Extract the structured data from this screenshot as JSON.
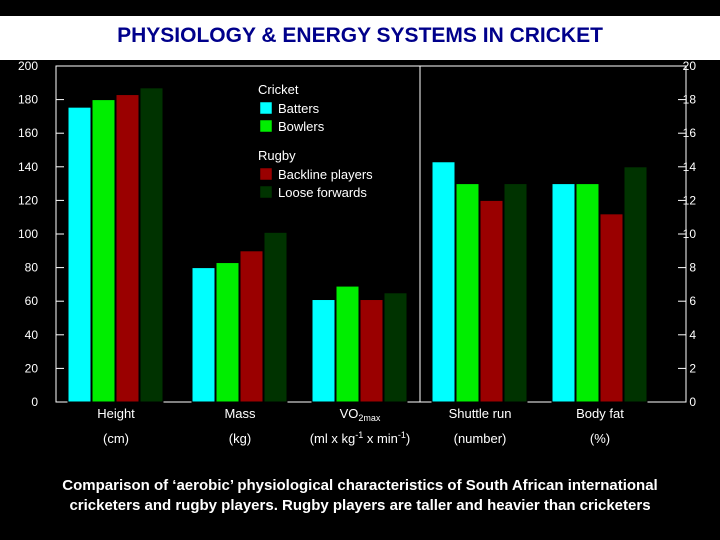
{
  "title": "PHYSIOLOGY & ENERGY SYSTEMS IN CRICKET",
  "caption": "Comparison of ‘aerobic’ physiological characteristics of South African international cricketers and rugby players. Rugby players are taller and heavier than cricketers",
  "colors": {
    "background": "#000000",
    "title_band": "#ffffff",
    "title_text": "#00008b",
    "batters": "#00ffff",
    "bowlers": "#00ee00",
    "backline": "#9a0000",
    "loose_forwards": "#003300"
  },
  "chart_data": {
    "type": "bar",
    "categories": [
      {
        "name": "Height",
        "unit": "(cm)"
      },
      {
        "name": "Mass",
        "unit": "(kg)"
      },
      {
        "name": "VO",
        "name_sub": "2max",
        "unit": "(ml x kg",
        "unit_sup1": "-1",
        "unit_mid": " x min",
        "unit_sup2": "-1",
        "unit_end": ")"
      },
      {
        "name": "Shuttle run",
        "unit": "(number)"
      },
      {
        "name": "Body fat",
        "unit": "(%)"
      }
    ],
    "series": [
      {
        "name": "Batters",
        "group": "Cricket",
        "color": "#00ffff",
        "values": [
          175.5,
          80,
          6.1,
          14.3,
          13
        ]
      },
      {
        "name": "Bowlers",
        "group": "Cricket",
        "color": "#00ee00",
        "values": [
          180,
          83,
          6.9,
          13,
          13
        ]
      },
      {
        "name": "Backline players",
        "group": "Rugby",
        "color": "#9a0000",
        "values": [
          183,
          90,
          6.1,
          12,
          11.2
        ]
      },
      {
        "name": "Loose forwards",
        "group": "Rugby",
        "color": "#003300",
        "values": [
          187,
          101,
          6.5,
          13,
          14
        ]
      }
    ],
    "axis_groups": [
      {
        "categories": [
          0,
          1
        ],
        "axis": "left"
      },
      {
        "categories": [
          2,
          3,
          4
        ],
        "axis": "right"
      }
    ],
    "left_axis": {
      "min": 0,
      "max": 200,
      "ticks": [
        "0",
        "20",
        "40",
        "60",
        "80",
        "100",
        "120",
        "140",
        "160",
        "180",
        "200"
      ]
    },
    "right_axis": {
      "min": 0,
      "max": 20,
      "ticks": [
        "0",
        "2",
        "4",
        "6",
        "8",
        "10",
        "12",
        "14",
        "16",
        "18",
        "20"
      ]
    },
    "legend": {
      "groups": [
        {
          "title": "Cricket",
          "entries": [
            {
              "label": "Batters",
              "color": "#00ffff"
            },
            {
              "label": "Bowlers",
              "color": "#00ee00"
            }
          ]
        },
        {
          "title": "Rugby",
          "entries": [
            {
              "label": "Backline players",
              "color": "#9a0000"
            },
            {
              "label": "Loose forwards",
              "color": "#003300"
            }
          ]
        }
      ]
    }
  }
}
